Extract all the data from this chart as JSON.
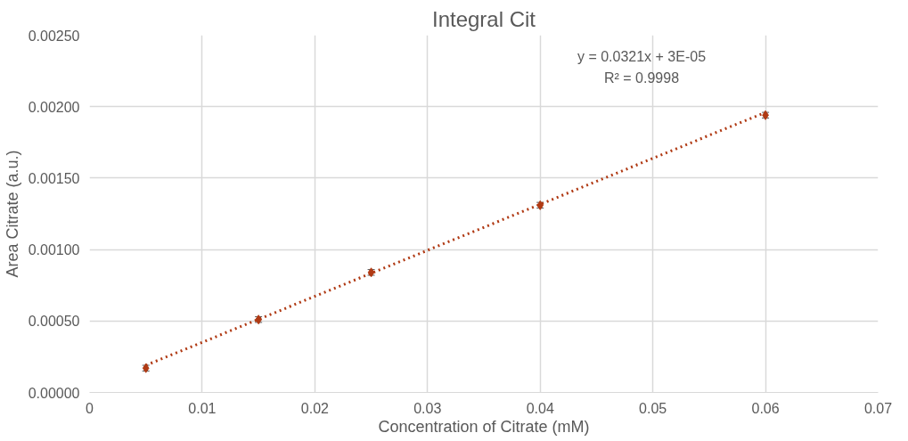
{
  "chart_data": {
    "type": "scatter",
    "title": "Integral Cit",
    "xlabel": "Concentration of Citrate (mM)",
    "ylabel": "Area Citrate (a.u.)",
    "series": [
      {
        "color": "#b03a14",
        "x": [
          0.005,
          0.015,
          0.025,
          0.04,
          0.06
        ],
        "values": [
          0.00017,
          0.00051,
          0.00084,
          0.00131,
          0.00194
        ],
        "errors": [
          2e-05,
          2e-05,
          2e-05,
          2e-05,
          2e-05
        ],
        "marker": "diamond"
      },
      {
        "type": "line",
        "color": "#b03a14",
        "x": [
          0.005,
          0.06
        ],
        "values": [
          0.00019,
          0.00196
        ],
        "line_style": "dotted",
        "marker": "none"
      }
    ],
    "annotations": [
      "y = 0.0321x + 3E-05",
      "R² = 0.9998"
    ],
    "xlim": [
      0,
      0.07
    ],
    "xticks": [
      0,
      0.01,
      0.02,
      0.03,
      0.04,
      0.05,
      0.06,
      0.07
    ],
    "ylim": [
      0,
      0.0025
    ],
    "yticks": [
      {
        "value": 0,
        "label": "0.00000"
      },
      {
        "value": 0.0005,
        "label": "0.00050"
      },
      {
        "value": 0.001,
        "label": "0.00100"
      },
      {
        "value": 0.0015,
        "label": "0.00150"
      },
      {
        "value": 0.002,
        "label": "0.00200"
      },
      {
        "value": 0.0025,
        "label": "0.00250"
      }
    ],
    "grid": true
  }
}
